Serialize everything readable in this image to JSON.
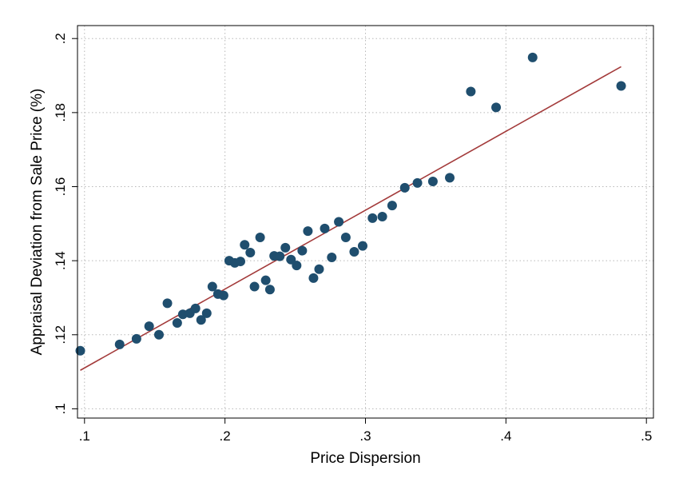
{
  "chart_data": {
    "type": "scatter",
    "xlabel": "Price Dispersion",
    "ylabel": "Appraisal Deviation from Sale Price (%)",
    "xlim": [
      0.095,
      0.505
    ],
    "ylim": [
      0.0975,
      0.2035
    ],
    "xticks": [
      0.1,
      0.2,
      0.3,
      0.4,
      0.5
    ],
    "xtick_labels": [
      ".1",
      ".2",
      ".3",
      ".4",
      ".5"
    ],
    "yticks": [
      0.1,
      0.12,
      0.14,
      0.16,
      0.18,
      0.2
    ],
    "ytick_labels": [
      ".1",
      ".12",
      ".14",
      ".16",
      ".18",
      ".2"
    ],
    "grid": true,
    "marker_color": "#1f4e6e",
    "fit_line_color": "#a33a3a",
    "series": [
      {
        "type": "scatter",
        "x": [
          0.097,
          0.125,
          0.137,
          0.146,
          0.153,
          0.159,
          0.166,
          0.17,
          0.175,
          0.179,
          0.183,
          0.187,
          0.191,
          0.195,
          0.199,
          0.203,
          0.207,
          0.211,
          0.214,
          0.218,
          0.221,
          0.225,
          0.229,
          0.232,
          0.235,
          0.239,
          0.243,
          0.247,
          0.251,
          0.255,
          0.259,
          0.263,
          0.267,
          0.271,
          0.276,
          0.281,
          0.286,
          0.292,
          0.298,
          0.305,
          0.312,
          0.319,
          0.328,
          0.337,
          0.348,
          0.36,
          0.375,
          0.393,
          0.419,
          0.482
        ],
        "y": [
          0.1157,
          0.1174,
          0.1189,
          0.1223,
          0.12,
          0.1285,
          0.1232,
          0.1255,
          0.1258,
          0.1271,
          0.124,
          0.1258,
          0.133,
          0.131,
          0.1306,
          0.14,
          0.1394,
          0.1398,
          0.1443,
          0.1422,
          0.133,
          0.1463,
          0.1347,
          0.1322,
          0.1413,
          0.1412,
          0.1435,
          0.1403,
          0.1387,
          0.1427,
          0.148,
          0.1353,
          0.1377,
          0.1487,
          0.1409,
          0.1505,
          0.1463,
          0.1424,
          0.144,
          0.1515,
          0.1519,
          0.1549,
          0.1597,
          0.161,
          0.1614,
          0.1624,
          0.1857,
          0.1814,
          0.1949,
          0.1872
        ]
      },
      {
        "type": "line",
        "x": [
          0.097,
          0.482
        ],
        "y": [
          0.1104,
          0.1924
        ]
      }
    ]
  }
}
